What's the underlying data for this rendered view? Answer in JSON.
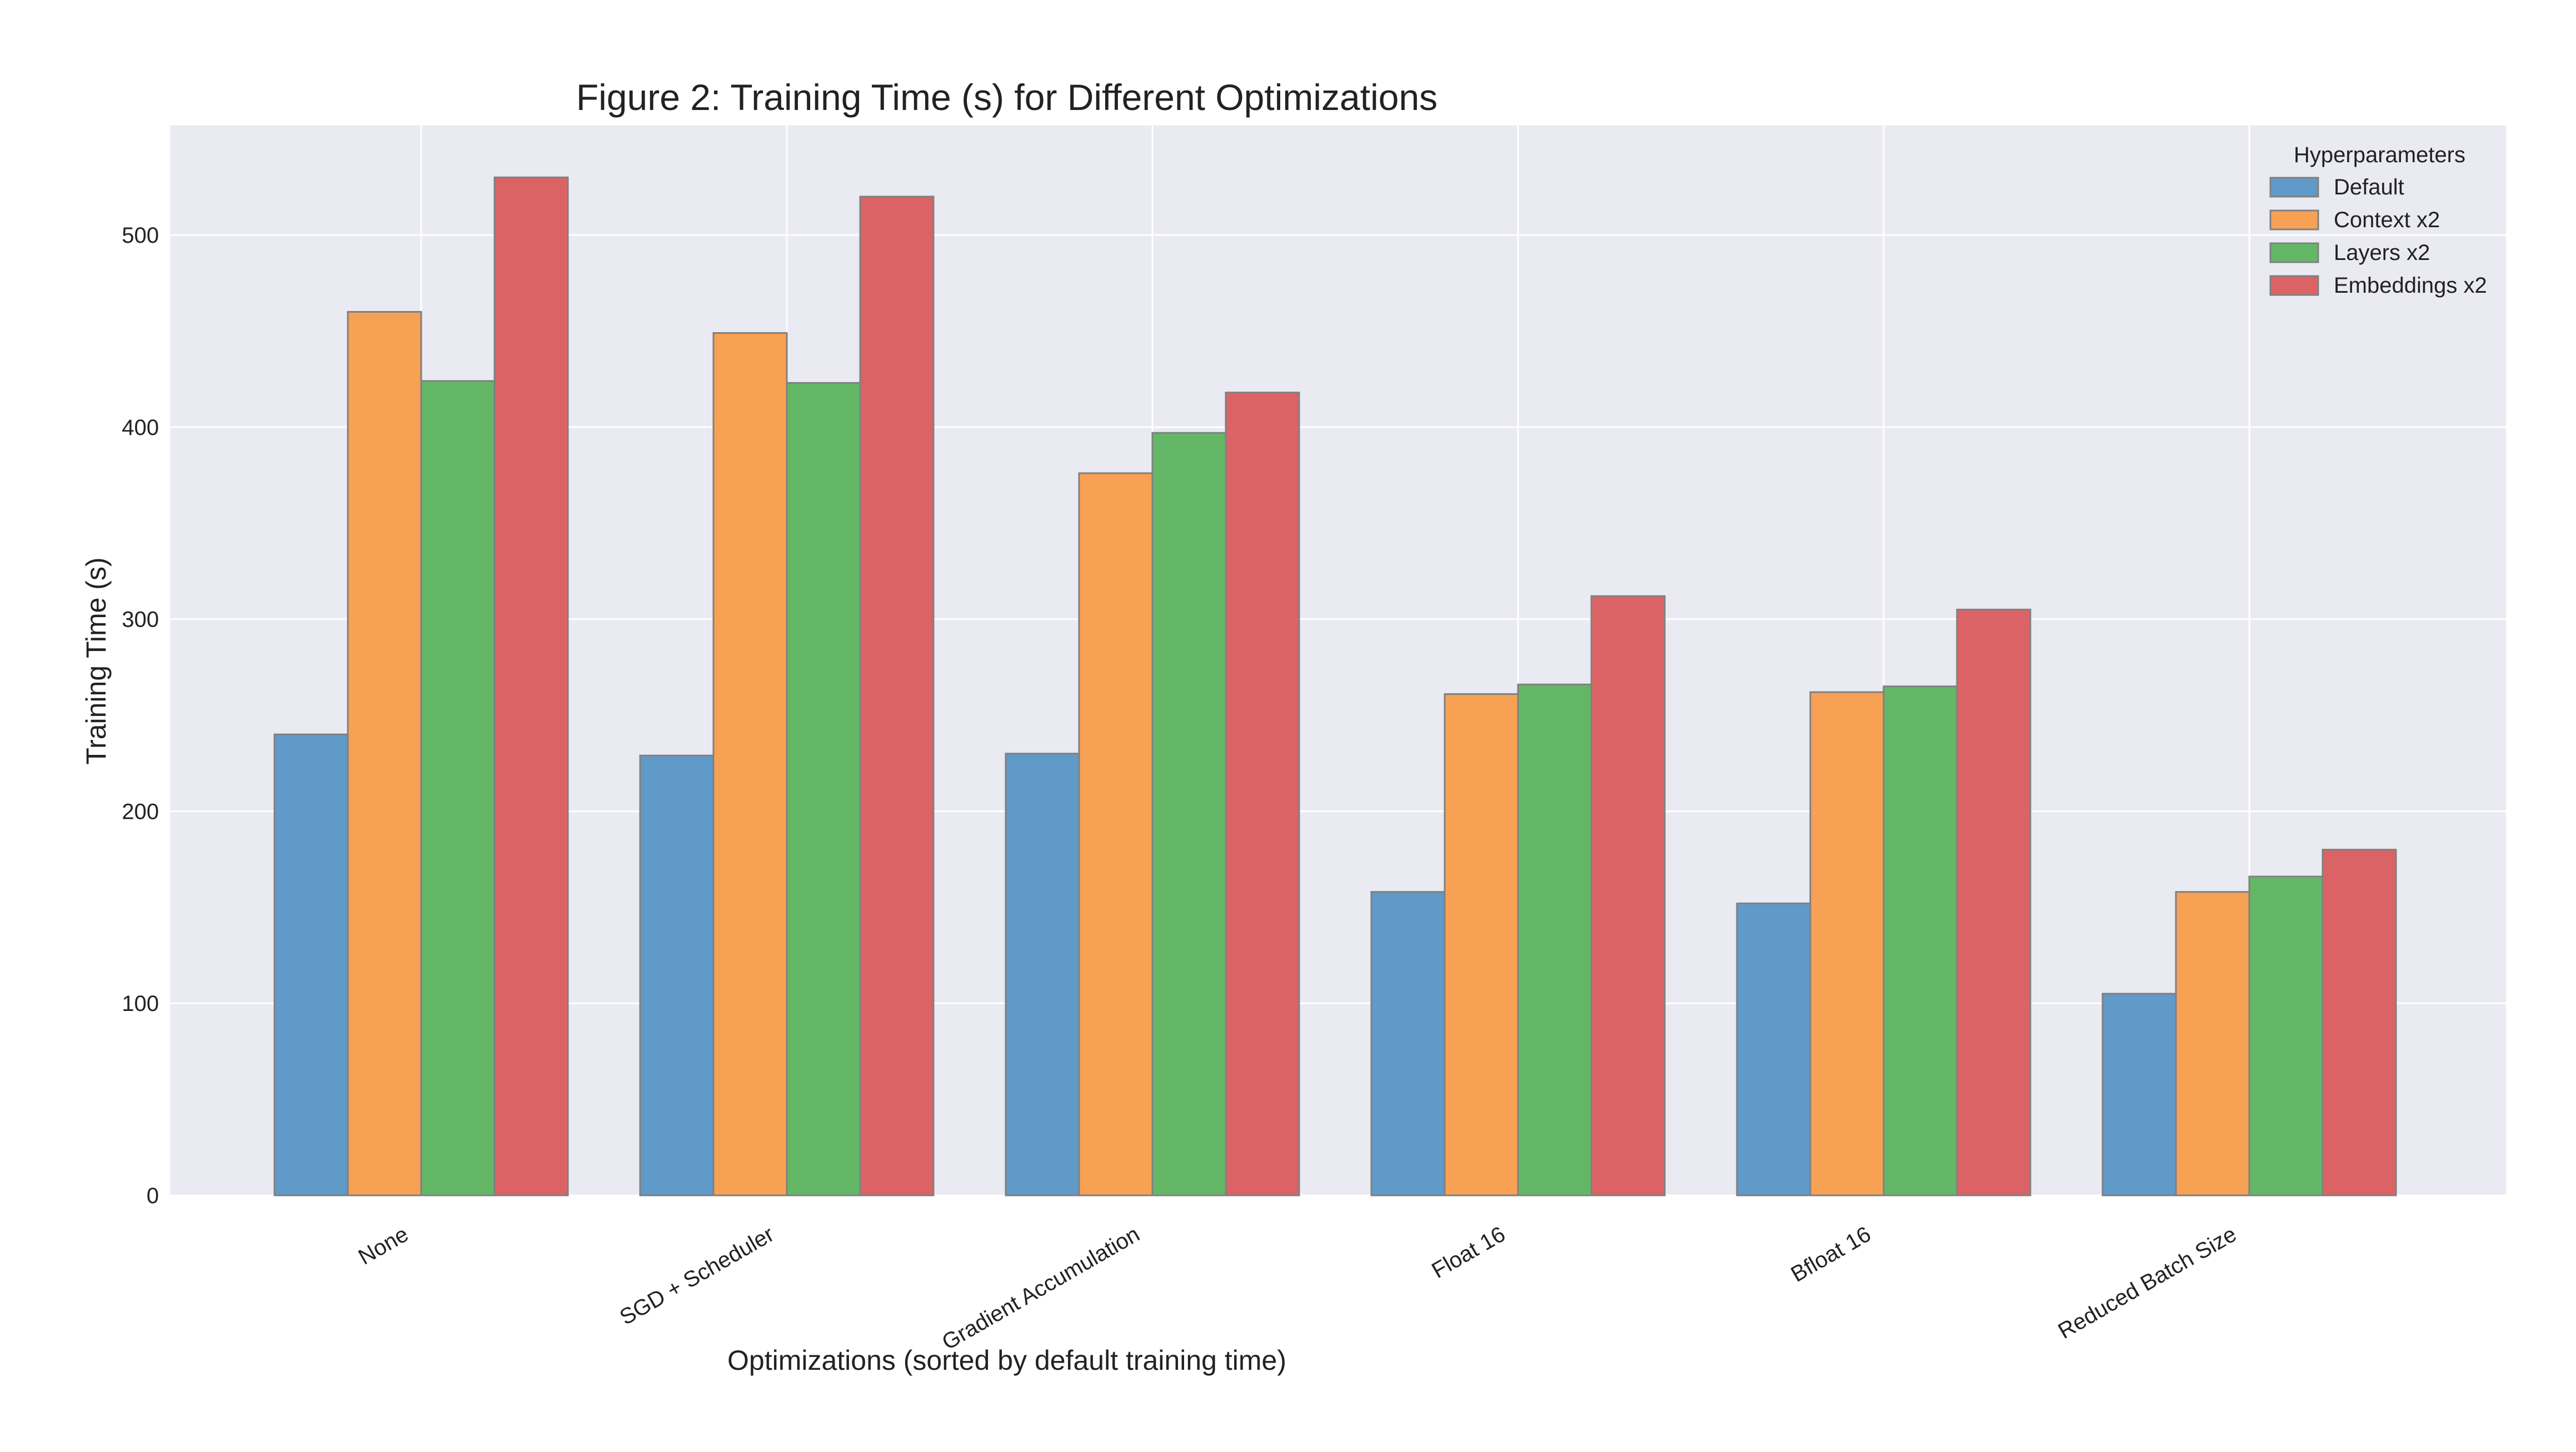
{
  "chart_data": {
    "type": "bar",
    "title": "Figure 2: Training Time (s) for Different Optimizations",
    "xlabel": "Optimizations (sorted by default training time)",
    "ylabel": "Training Time (s)",
    "categories": [
      "None",
      "SGD + Scheduler",
      "Gradient Accumulation",
      "Float 16",
      "Bfloat 16",
      "Reduced Batch Size"
    ],
    "series": [
      {
        "name": "Default",
        "color": "#5f9ac8",
        "values": [
          240,
          229,
          230,
          158,
          152,
          105
        ]
      },
      {
        "name": "Context x2",
        "color": "#f7a154",
        "values": [
          460,
          449,
          376,
          261,
          262,
          158
        ]
      },
      {
        "name": "Layers x2",
        "color": "#64b766",
        "values": [
          424,
          423,
          397,
          266,
          265,
          166
        ]
      },
      {
        "name": "Embeddings x2",
        "color": "#dc6365",
        "values": [
          530,
          520,
          418,
          312,
          305,
          180
        ]
      }
    ],
    "ylim": [
      0,
      557
    ],
    "yticks": [
      0,
      100,
      200,
      300,
      400,
      500
    ],
    "grid": true,
    "legend": {
      "title": "Hyperparameters",
      "placement": "top-right"
    },
    "colors": {
      "background": "#eaeaf2",
      "grid": "#ffffff",
      "bar_edge": "#808080"
    }
  }
}
